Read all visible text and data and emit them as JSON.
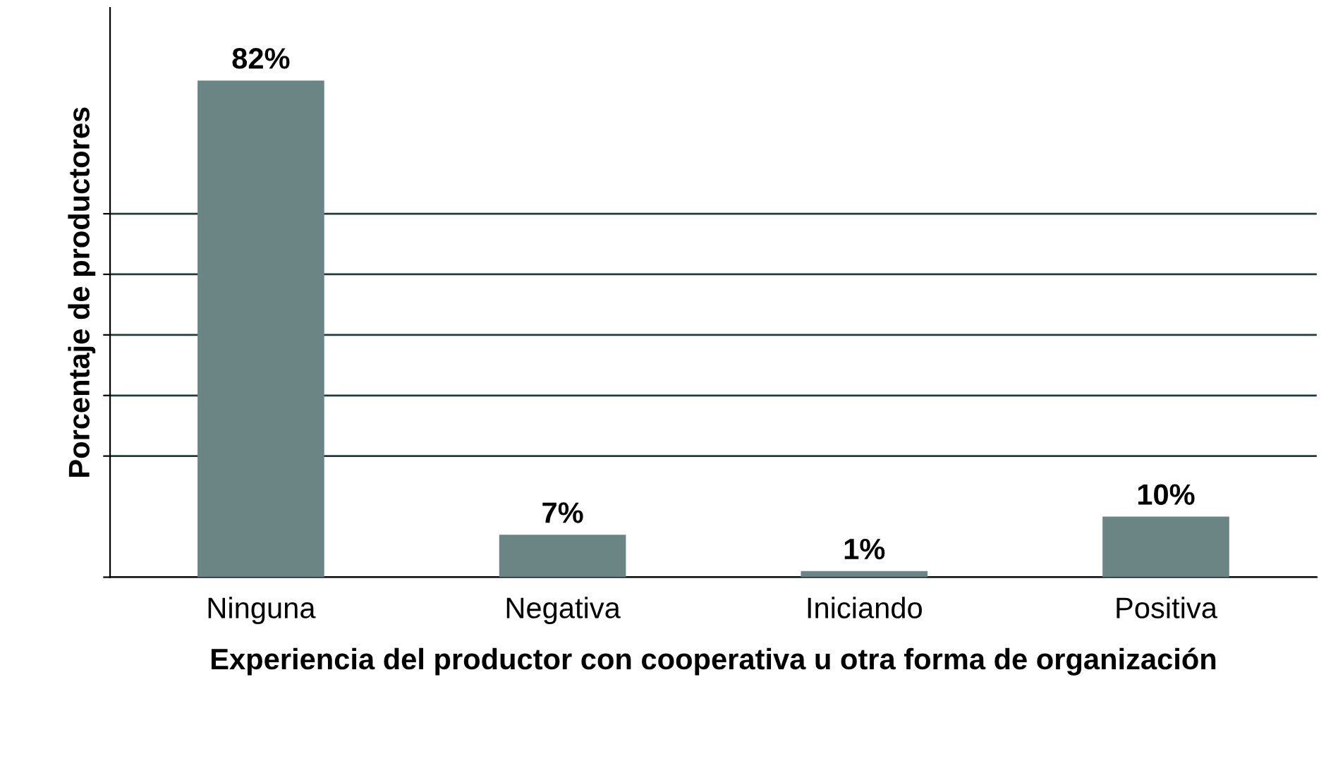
{
  "chart_data": {
    "type": "bar",
    "xlabel": "Experiencia del productor con cooperativa u otra forma de organización",
    "ylabel": "Porcentaje de productores",
    "categories": [
      "Ninguna",
      "Negativa",
      "Iniciando",
      "Positiva"
    ],
    "values": [
      82,
      7,
      1,
      10
    ],
    "value_labels": [
      "82%",
      "7%",
      "1%",
      "10%"
    ],
    "color": "#6b8584",
    "ylim": [
      0,
      94
    ],
    "yticks": [
      {
        "value": 0,
        "label": null
      },
      {
        "value": 20,
        "label": null
      },
      {
        "value": 30,
        "label": null
      },
      {
        "value": 40,
        "label": null
      },
      {
        "value": 50,
        "label": null
      },
      {
        "value": 60,
        "label": null
      }
    ],
    "grid": "y",
    "tick_labels": "x"
  }
}
